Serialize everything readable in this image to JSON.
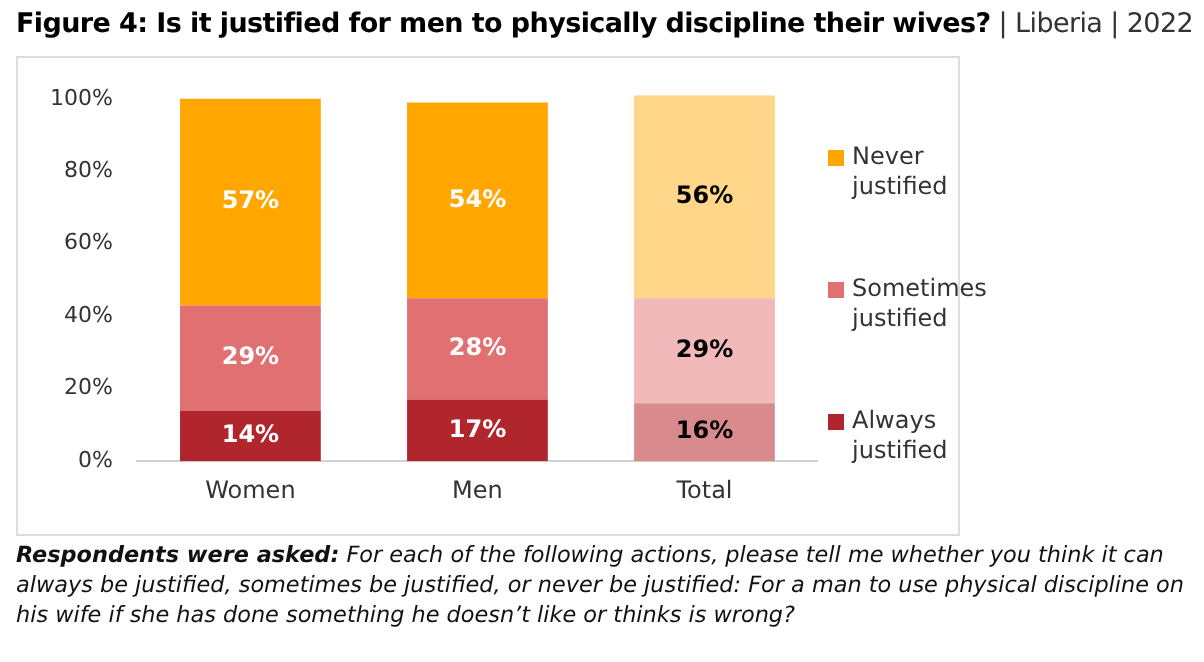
{
  "chart_data": {
    "type": "bar",
    "stacked": true,
    "title": "Figure 4: Is it justified for men to physically discipline their wives?",
    "subtitle": "| Liberia | 2022",
    "annotations": [
      "Respondents were asked:",
      "For each of the following actions, please tell me whether you think it can always be justified, sometimes be justified, or never be justified: For a man to use physical discipline on his wife if she has done something he doesn’t like or thinks is wrong?"
    ],
    "categories": [
      "Women",
      "Men",
      "Total"
    ],
    "series": [
      {
        "name": "Always justified",
        "color": "#b1262c",
        "colors": [
          "#b1262c",
          "#b1262c",
          "#d98a8d"
        ],
        "values": [
          14,
          17,
          16
        ],
        "value_labels": [
          "14%",
          "17%",
          "16%"
        ]
      },
      {
        "name": "Sometimes justified",
        "color": "#e07072",
        "colors": [
          "#e07072",
          "#e07072",
          "#f1b9ba"
        ],
        "values": [
          29,
          28,
          29
        ],
        "value_labels": [
          "29%",
          "28%",
          "29%"
        ]
      },
      {
        "name": "Never justified",
        "color": "#ffa600",
        "colors": [
          "#ffa600",
          "#ffa600",
          "#ffd68a"
        ],
        "values": [
          57,
          54,
          56
        ],
        "value_labels": [
          "57%",
          "54%",
          "56%"
        ]
      }
    ],
    "ylim": [
      0,
      101
    ],
    "yticks": [
      {
        "value": 0,
        "label": "0%"
      },
      {
        "value": 20,
        "label": "20%"
      },
      {
        "value": 40,
        "label": "40%"
      },
      {
        "value": 60,
        "label": "60%"
      },
      {
        "value": 80,
        "label": "80%"
      },
      {
        "value": 100,
        "label": "100%"
      }
    ],
    "grid": false,
    "legend": "right"
  }
}
